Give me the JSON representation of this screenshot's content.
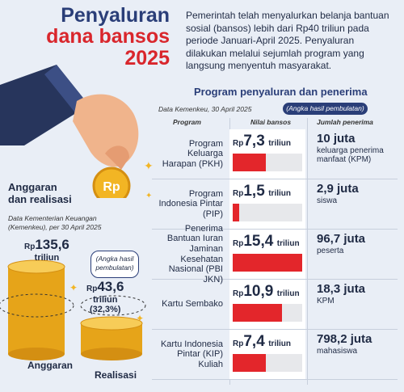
{
  "title": {
    "line1": "Penyaluran",
    "line2": "dana bansos",
    "line3": "2025"
  },
  "intro": "Pemerintah telah menyalurkan belanja bantuan sosial (bansos) lebih dari Rp40 triliun pada periode Januari-April 2025. Penyaluran dilakukan melalui sejumlah program yang langsung menyentuh masyarakat.",
  "program_section": {
    "title": "Program penyaluran dan penerima",
    "source": "Data Kemenkeu, 30 April 2025",
    "note": "(Angka hasil pembulatan)",
    "headers": {
      "program": "Program",
      "nilai": "Nilai bansos",
      "penerima": "Jumlah penerima"
    },
    "rows": [
      {
        "program": "Program Keluarga Harapan (PKH)",
        "rp": "Rp",
        "value": "7,3",
        "unit": "triliun",
        "amount": 7.3,
        "recipients": "10 juta",
        "rec_desc": "keluarga penerima manfaat (KPM)"
      },
      {
        "program": "Program Indonesia Pintar (PIP)",
        "rp": "Rp",
        "value": "1,5",
        "unit": "triliun",
        "amount": 1.5,
        "recipients": "2,9 juta",
        "rec_desc": "siswa"
      },
      {
        "program": "Penerima Bantuan Iuran Jaminan Kesehatan Nasional (PBI JKN)",
        "rp": "Rp",
        "value": "15,4",
        "unit": "triliun",
        "amount": 15.4,
        "recipients": "96,7 juta",
        "rec_desc": "peserta"
      },
      {
        "program": "Kartu Sembako",
        "rp": "Rp",
        "value": "10,9",
        "unit": "triliun",
        "amount": 10.9,
        "recipients": "18,3 juta",
        "rec_desc": "KPM"
      },
      {
        "program": "Kartu Indonesia Pintar (KIP) Kuliah",
        "rp": "Rp",
        "value": "7,4",
        "unit": "triliun",
        "amount": 7.4,
        "recipients": "798,2 juta",
        "rec_desc": "mahasiswa"
      }
    ]
  },
  "budget": {
    "heading_line1": "Anggaran",
    "heading_line2": "dan realisasi",
    "source": "Data Kementerian Keuangan (Kemenkeu), per 30 April 2025",
    "note": "(Angka hasil pembulatan)",
    "anggaran": {
      "rp": "Rp",
      "value": "135,6",
      "unit": "triliun",
      "label": "Anggaran"
    },
    "realisasi": {
      "rp": "Rp",
      "value": "43,6",
      "unit": "triliun",
      "pct": "(32,3%)",
      "label": "Realisasi"
    }
  },
  "colors": {
    "navy": "#2a3e78",
    "red": "#e3262b",
    "gold": "#f2b524",
    "bg": "#e9eef6"
  }
}
